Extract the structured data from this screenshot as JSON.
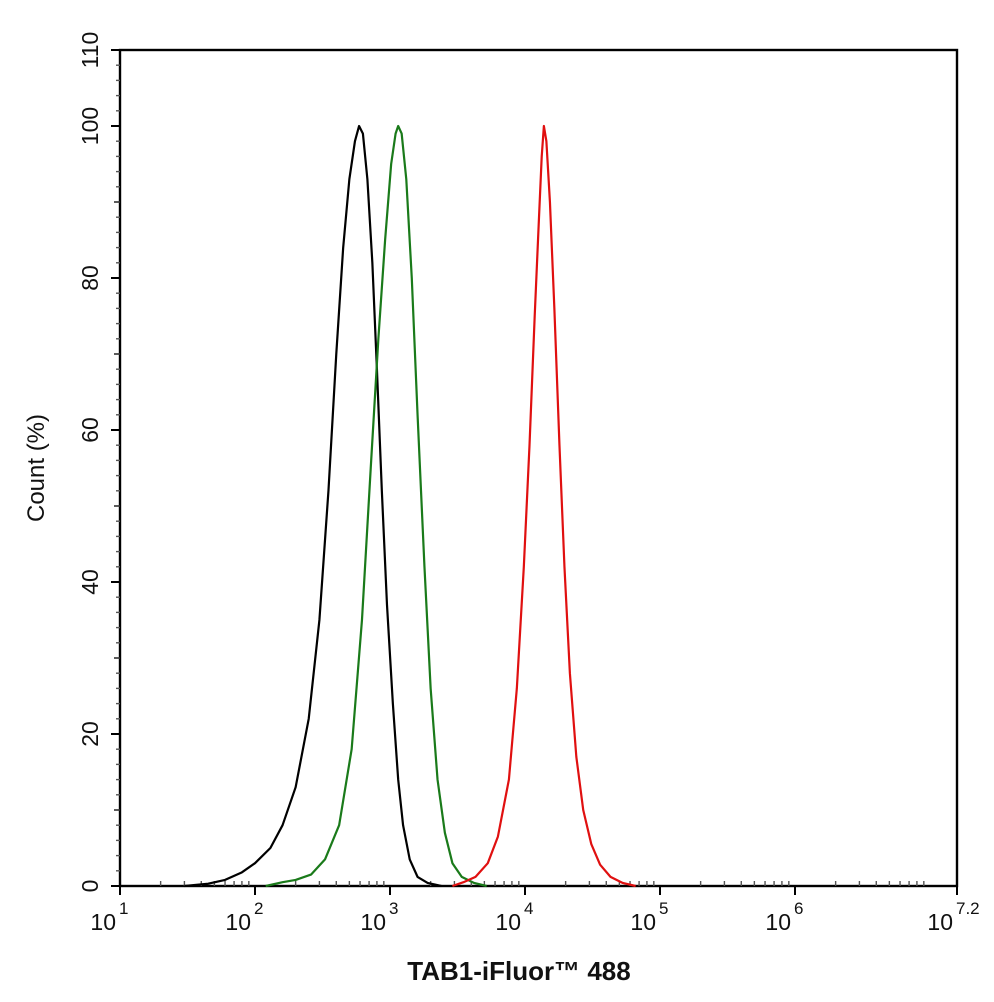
{
  "chart_data": {
    "type": "line",
    "xlabel": "TAB1-iFluor™ 488",
    "ylabel": "Count  (%)",
    "x_scale": "log10",
    "xlim": [
      10,
      15848932
    ],
    "ylim": [
      0,
      110
    ],
    "x_ticks": [
      {
        "base": "10",
        "exp": "1",
        "value": 10
      },
      {
        "base": "10",
        "exp": "2",
        "value": 100
      },
      {
        "base": "10",
        "exp": "3",
        "value": 1000
      },
      {
        "base": "10",
        "exp": "4",
        "value": 10000
      },
      {
        "base": "10",
        "exp": "5",
        "value": 100000
      },
      {
        "base": "10",
        "exp": "6",
        "value": 1000000
      },
      {
        "base": "10",
        "exp": "7.2",
        "value": 15848932
      }
    ],
    "y_ticks": [
      "0",
      "20",
      "40",
      "60",
      "80",
      "100",
      "110"
    ],
    "grid": false,
    "series": [
      {
        "color": "#000000",
        "points": [
          [
            30,
            0
          ],
          [
            45,
            0.3
          ],
          [
            60,
            0.8
          ],
          [
            80,
            1.8
          ],
          [
            100,
            3
          ],
          [
            130,
            5
          ],
          [
            160,
            8
          ],
          [
            200,
            13
          ],
          [
            250,
            22
          ],
          [
            300,
            35
          ],
          [
            350,
            52
          ],
          [
            400,
            70
          ],
          [
            450,
            84
          ],
          [
            500,
            93
          ],
          [
            550,
            98
          ],
          [
            590,
            100
          ],
          [
            630,
            99
          ],
          [
            680,
            93
          ],
          [
            740,
            82
          ],
          [
            800,
            68
          ],
          [
            870,
            52
          ],
          [
            950,
            37
          ],
          [
            1050,
            24
          ],
          [
            1150,
            14
          ],
          [
            1250,
            8
          ],
          [
            1400,
            3.5
          ],
          [
            1600,
            1.2
          ],
          [
            1900,
            0.4
          ],
          [
            2400,
            0
          ]
        ]
      },
      {
        "color": "#1a7a1a",
        "points": [
          [
            120,
            0
          ],
          [
            160,
            0.5
          ],
          [
            200,
            0.8
          ],
          [
            260,
            1.5
          ],
          [
            330,
            3.5
          ],
          [
            420,
            8
          ],
          [
            520,
            18
          ],
          [
            620,
            35
          ],
          [
            720,
            55
          ],
          [
            820,
            72
          ],
          [
            920,
            85
          ],
          [
            1020,
            95
          ],
          [
            1100,
            99
          ],
          [
            1150,
            100
          ],
          [
            1220,
            99
          ],
          [
            1320,
            93
          ],
          [
            1450,
            80
          ],
          [
            1600,
            62
          ],
          [
            1800,
            42
          ],
          [
            2000,
            26
          ],
          [
            2250,
            14
          ],
          [
            2550,
            7
          ],
          [
            2900,
            3
          ],
          [
            3400,
            1.2
          ],
          [
            4200,
            0.4
          ],
          [
            5200,
            0
          ]
        ]
      },
      {
        "color": "#e01010",
        "points": [
          [
            2900,
            0
          ],
          [
            3500,
            0.5
          ],
          [
            4300,
            1.2
          ],
          [
            5300,
            3
          ],
          [
            6300,
            6.5
          ],
          [
            7600,
            14
          ],
          [
            8700,
            26
          ],
          [
            9800,
            42
          ],
          [
            10800,
            58
          ],
          [
            11800,
            75
          ],
          [
            12700,
            88
          ],
          [
            13300,
            96
          ],
          [
            13800,
            100
          ],
          [
            14400,
            98
          ],
          [
            15300,
            90
          ],
          [
            16500,
            76
          ],
          [
            18000,
            58
          ],
          [
            19600,
            42
          ],
          [
            21500,
            28
          ],
          [
            24000,
            17
          ],
          [
            27000,
            10
          ],
          [
            31000,
            5.5
          ],
          [
            36000,
            2.8
          ],
          [
            43000,
            1.2
          ],
          [
            53000,
            0.4
          ],
          [
            66000,
            0
          ]
        ]
      }
    ]
  }
}
